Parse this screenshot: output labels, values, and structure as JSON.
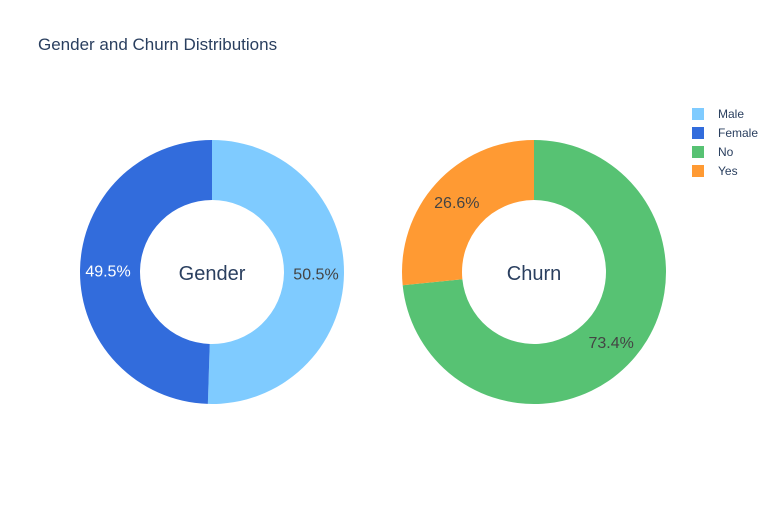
{
  "chart_data": {
    "type": "pie",
    "title": "Gender and Churn Distributions",
    "pies": [
      {
        "center_label": "Gender",
        "hole": true,
        "slices": [
          {
            "label": "Male",
            "value": 50.5,
            "display": "50.5%",
            "color": "#7fcbff"
          },
          {
            "label": "Female",
            "value": 49.5,
            "display": "49.5%",
            "color": "#326cdc"
          }
        ]
      },
      {
        "center_label": "Churn",
        "hole": true,
        "slices": [
          {
            "label": "No",
            "value": 73.4,
            "display": "73.4%",
            "color": "#57c273"
          },
          {
            "label": "Yes",
            "value": 26.6,
            "display": "26.6%",
            "color": "#ff9a33"
          }
        ]
      }
    ],
    "legend": {
      "placement": "top-right",
      "entries": [
        {
          "label": "Male",
          "color": "#7fcbff"
        },
        {
          "label": "Female",
          "color": "#326cdc"
        },
        {
          "label": "No",
          "color": "#57c273"
        },
        {
          "label": "Yes",
          "color": "#ff9a33"
        }
      ]
    }
  }
}
